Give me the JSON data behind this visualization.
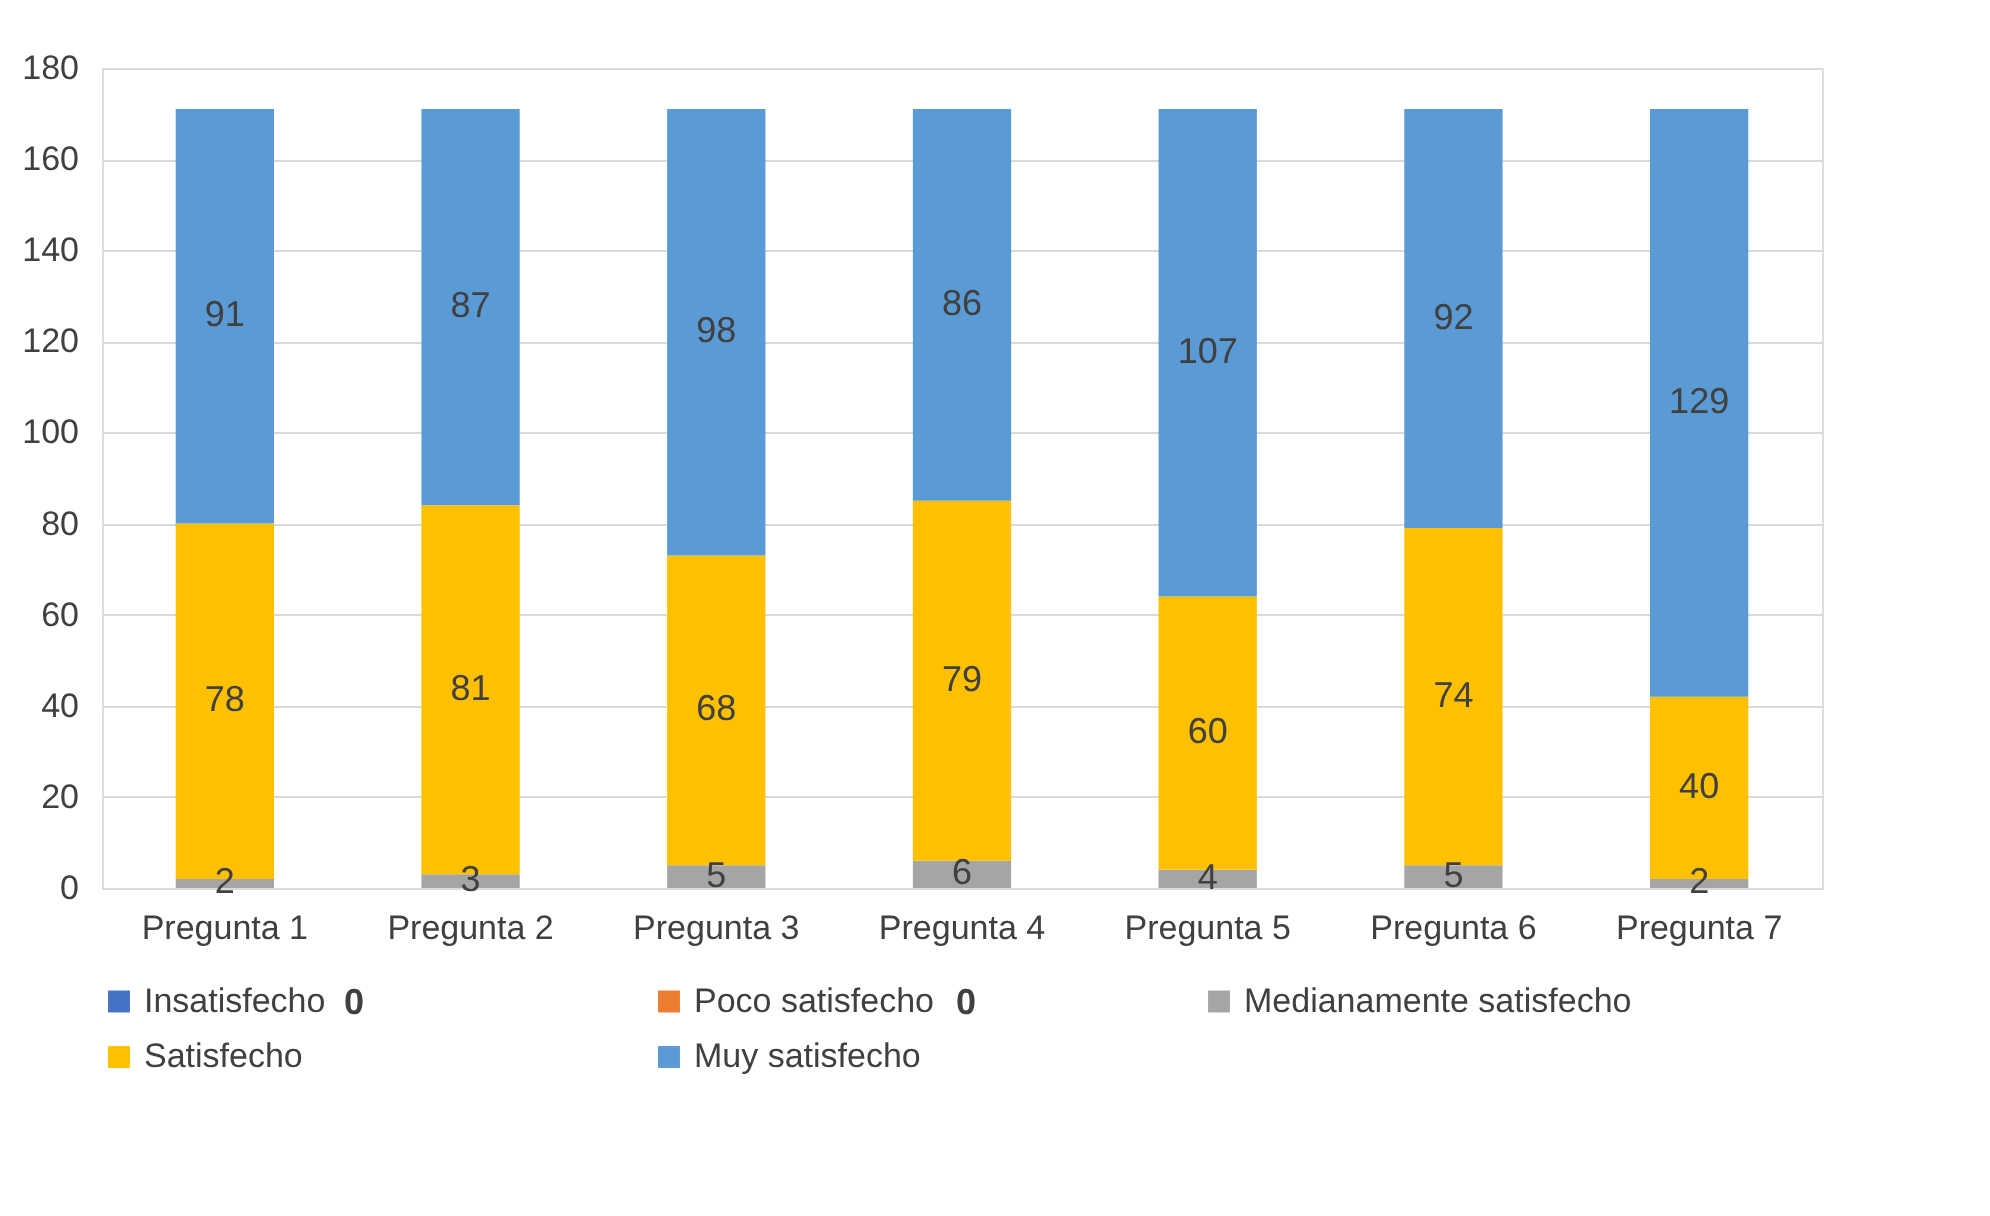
{
  "chart_data": {
    "type": "bar",
    "stacked": true,
    "categories": [
      "Pregunta 1",
      "Pregunta 2",
      "Pregunta 3",
      "Pregunta 4",
      "Pregunta 5",
      "Pregunta 6",
      "Pregunta 7"
    ],
    "series": [
      {
        "name": "Insatisfecho",
        "color": "#4472c4",
        "values": [
          0,
          0,
          0,
          0,
          0,
          0,
          0
        ],
        "value_labels": [
          null,
          null,
          null,
          null,
          null,
          null,
          null
        ]
      },
      {
        "name": "Poco satisfecho",
        "color": "#ed7d31",
        "values": [
          0,
          0,
          0,
          0,
          0,
          0,
          0
        ],
        "value_labels": [
          null,
          null,
          null,
          null,
          null,
          null,
          null
        ]
      },
      {
        "name": "Medianamente satisfecho",
        "color": "#a5a5a5",
        "values": [
          2,
          3,
          5,
          6,
          4,
          5,
          2
        ]
      },
      {
        "name": "Satisfecho",
        "color": "#ffc000",
        "values": [
          78,
          81,
          68,
          79,
          60,
          74,
          40
        ]
      },
      {
        "name": "Muy satisfecho",
        "color": "#5b9bd5",
        "values": [
          91,
          87,
          98,
          86,
          107,
          92,
          129
        ]
      }
    ],
    "data_labels": true,
    "annotations": [
      "0",
      "0"
    ],
    "ylim": [
      0,
      180
    ],
    "yticks": [
      0,
      20,
      40,
      60,
      80,
      100,
      120,
      140,
      160,
      180
    ],
    "grid": "y",
    "legend": "bottom"
  }
}
